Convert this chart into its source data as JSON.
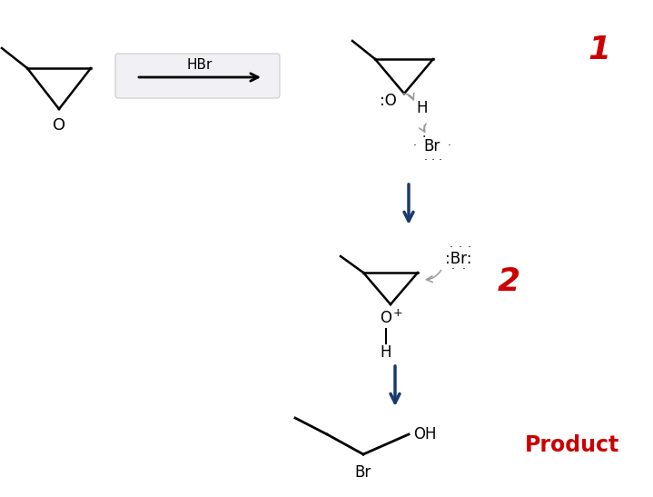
{
  "bg_color": "#ffffff",
  "title_color": "#cc0000",
  "arrow_color": "#1a3a6e",
  "bond_color": "#000000",
  "curved_arrow_color": "#999999",
  "step1_number": "1",
  "step2_number": "2",
  "product_label": "Product",
  "reagent": "HBr",
  "figsize": [
    7.19,
    5.47
  ],
  "dpi": 100,
  "xlim": [
    0,
    719
  ],
  "ylim": [
    0,
    547
  ]
}
